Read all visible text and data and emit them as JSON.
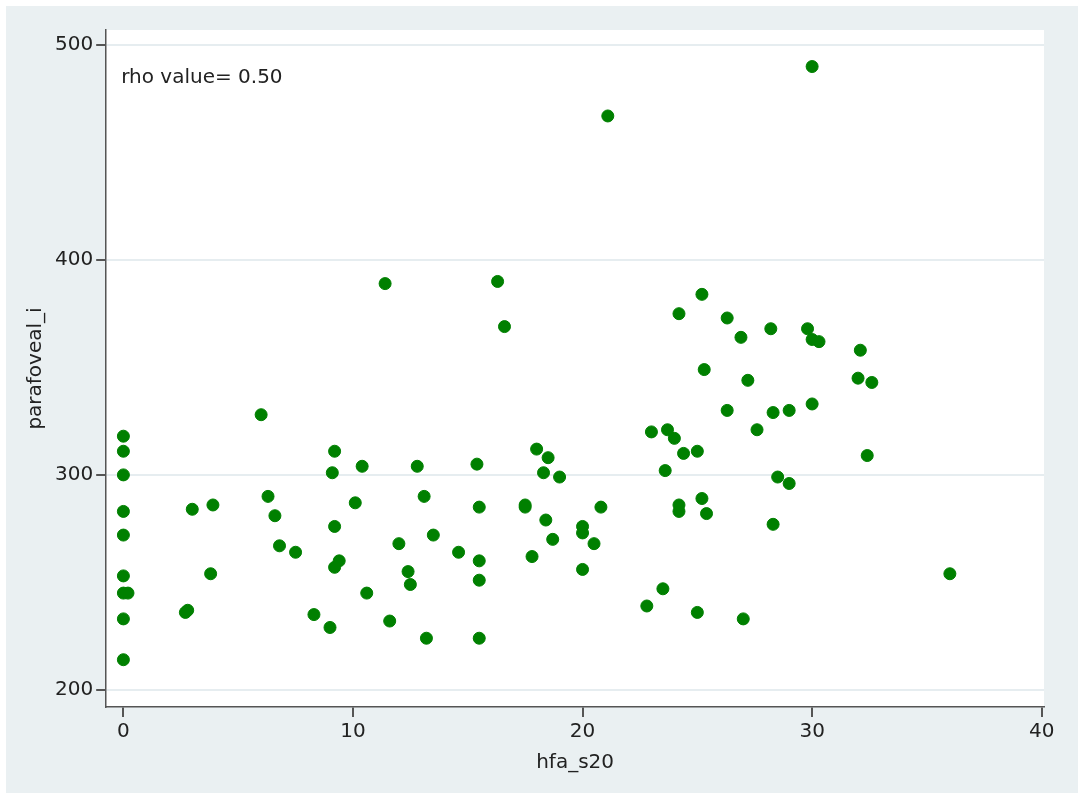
{
  "chart_data": {
    "type": "scatter",
    "xlabel": "hfa_s20",
    "ylabel": "parafoveal_i",
    "annotations": [
      "rho value= 0.50"
    ],
    "x": [
      0,
      0,
      0,
      0,
      0,
      0,
      0,
      0.2,
      0,
      0,
      2.7,
      2.8,
      3,
      3.8,
      3.9,
      6,
      6.3,
      6.6,
      6.8,
      7.5,
      8.3,
      9,
      9.1,
      9.2,
      9.2,
      9.2,
      9.4,
      10.1,
      10.4,
      10.6,
      11.4,
      11.6,
      12,
      12.4,
      12.5,
      12.8,
      13.1,
      13.2,
      13.5,
      14.6,
      15.4,
      15.5,
      15.5,
      15.5,
      15.5,
      16.3,
      16.6,
      17.5,
      17.5,
      17.8,
      18,
      18.3,
      18.4,
      18.5,
      18.7,
      19,
      20,
      20,
      20,
      20.5,
      20.8,
      21.1,
      22.8,
      23,
      23.5,
      23.6,
      23.7,
      24,
      24.2,
      24.2,
      24.2,
      24.4,
      25,
      25,
      25.2,
      25.2,
      25.3,
      25.4,
      26.3,
      26.3,
      26.9,
      27,
      27.2,
      27.6,
      28.2,
      28.3,
      28.3,
      28.5,
      29,
      29,
      29.8,
      30,
      30,
      30,
      30.3,
      32,
      32.1,
      32.4,
      32.6,
      36
    ],
    "values": [
      318,
      311,
      300,
      283,
      272,
      253,
      245,
      245,
      233,
      214,
      236,
      237,
      284,
      254,
      286,
      328,
      290,
      281,
      267,
      264,
      235,
      229,
      301,
      311,
      276,
      257,
      260,
      287,
      304,
      245,
      389,
      232,
      268,
      255,
      249,
      304,
      290,
      224,
      272,
      264,
      305,
      285,
      260,
      251,
      224,
      390,
      369,
      286,
      285,
      262,
      312,
      301,
      279,
      308,
      270,
      299,
      276,
      273,
      256,
      268,
      285,
      467,
      239,
      320,
      247,
      302,
      321,
      317,
      375,
      286,
      283,
      310,
      311,
      236,
      289,
      384,
      349,
      282,
      373,
      330,
      364,
      233,
      344,
      321,
      368,
      329,
      277,
      299,
      330,
      296,
      368,
      333,
      363,
      490,
      362,
      345,
      358,
      309,
      343,
      254
    ],
    "color": "#008000",
    "marker": "circle",
    "grid": "y",
    "xlim": [
      -0.75,
      40.1
    ],
    "xticks": [
      0,
      10,
      20,
      30,
      40
    ],
    "ylim": [
      192,
      507
    ],
    "yticks": [
      200,
      300,
      400,
      500
    ]
  }
}
